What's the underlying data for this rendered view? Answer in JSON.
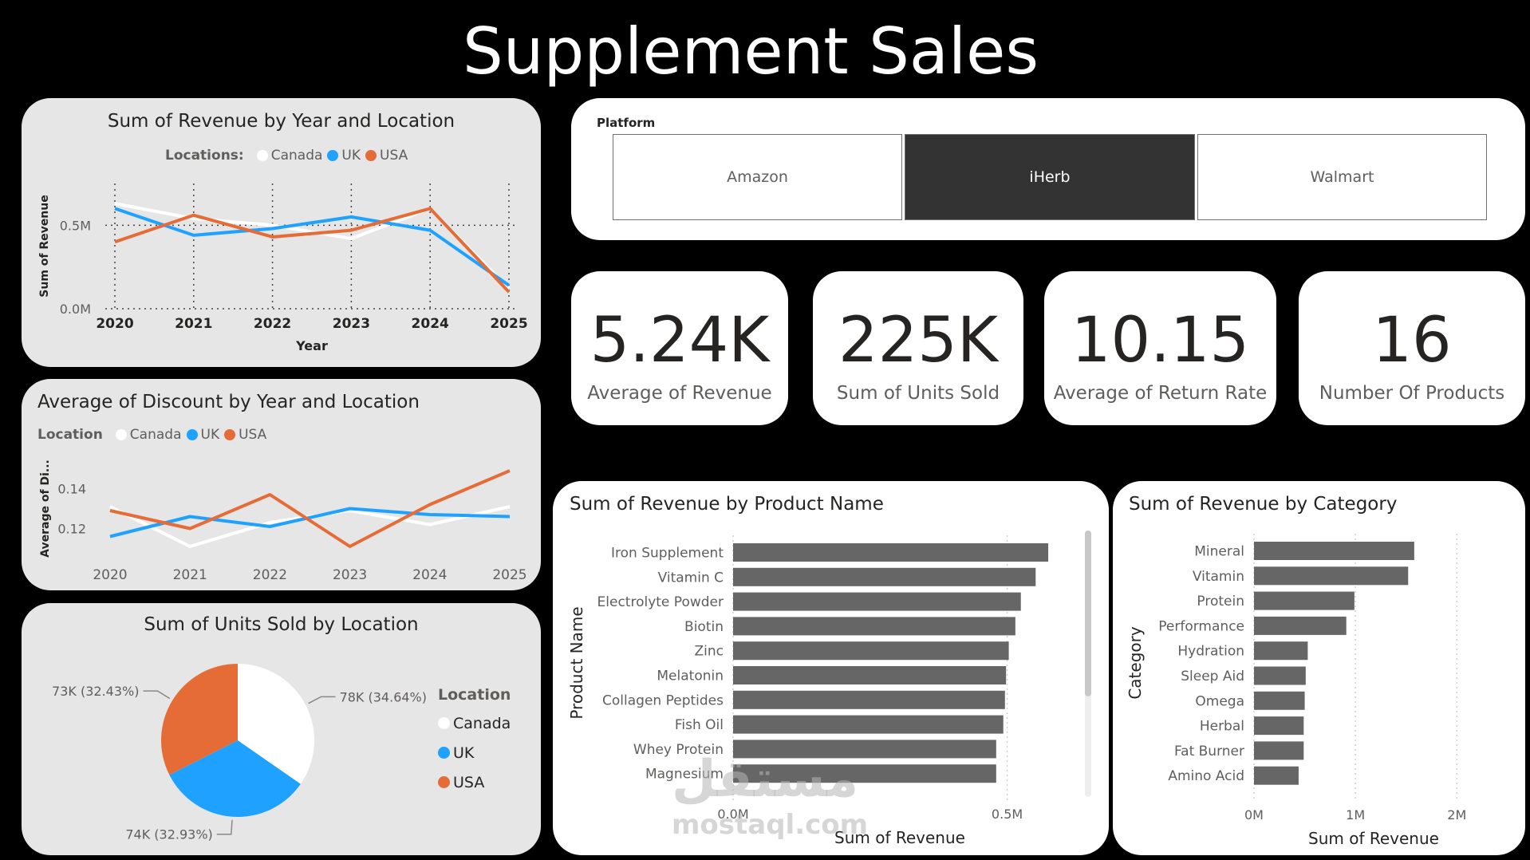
{
  "page_title": "Supplement Sales",
  "colors": {
    "canada": "#ffffff",
    "uk": "#1fa2ff",
    "usa": "#e66c37",
    "bar": "#666666",
    "selected": "#333333"
  },
  "slicer": {
    "title": "Platform",
    "options": [
      "Amazon",
      "iHerb",
      "Walmart"
    ],
    "selected": "iHerb"
  },
  "kpis": [
    {
      "value": "5.24K",
      "label": "Average of Revenue"
    },
    {
      "value": "225K",
      "label": "Sum of Units Sold"
    },
    {
      "value": "10.15",
      "label": "Average of Return Rate"
    },
    {
      "value": "16",
      "label": "Number Of Products"
    }
  ],
  "watermark": {
    "arabic": "مستقل",
    "latin": "mostaql.com"
  },
  "chart_data": [
    {
      "id": "revenue_by_year",
      "type": "line",
      "title": "Sum of Revenue by Year and Location",
      "legend_title": "Locations:",
      "xlabel": "Year",
      "ylabel": "Sum of Revenue",
      "x": [
        "2020",
        "2021",
        "2022",
        "2023",
        "2024",
        "2025"
      ],
      "ylim": [
        0,
        0.75
      ],
      "yticks": [
        {
          "v": 0,
          "label": "0.0M"
        },
        {
          "v": 0.5,
          "label": "0.5M"
        }
      ],
      "grid": true,
      "series": [
        {
          "name": "Canada",
          "color": "#ffffff",
          "values": [
            0.63,
            0.54,
            0.5,
            0.42,
            0.6,
            0.12
          ]
        },
        {
          "name": "UK",
          "color": "#1fa2ff",
          "values": [
            0.6,
            0.44,
            0.48,
            0.55,
            0.47,
            0.14
          ]
        },
        {
          "name": "USA",
          "color": "#e66c37",
          "values": [
            0.4,
            0.56,
            0.43,
            0.47,
            0.6,
            0.1
          ]
        }
      ]
    },
    {
      "id": "discount_by_year",
      "type": "line",
      "title": "Average of Discount by Year and Location",
      "legend_title": "Location",
      "xlabel": "",
      "ylabel": "Average of Di...",
      "x": [
        "2020",
        "2021",
        "2022",
        "2023",
        "2024",
        "2025"
      ],
      "ylim": [
        0.105,
        0.155
      ],
      "yticks": [
        {
          "v": 0.12,
          "label": "0.12"
        },
        {
          "v": 0.14,
          "label": "0.14"
        }
      ],
      "grid": false,
      "series": [
        {
          "name": "Canada",
          "color": "#ffffff",
          "values": [
            0.131,
            0.111,
            0.123,
            0.129,
            0.122,
            0.131
          ]
        },
        {
          "name": "UK",
          "color": "#1fa2ff",
          "values": [
            0.116,
            0.126,
            0.121,
            0.13,
            0.127,
            0.126
          ]
        },
        {
          "name": "USA",
          "color": "#e66c37",
          "values": [
            0.129,
            0.12,
            0.137,
            0.111,
            0.132,
            0.149
          ]
        }
      ]
    },
    {
      "id": "units_by_location",
      "type": "pie",
      "title": "Sum of Units Sold by Location",
      "legend_title": "Location",
      "slices": [
        {
          "name": "Canada",
          "color": "#ffffff",
          "value": 78,
          "label": "78K (34.64%)"
        },
        {
          "name": "UK",
          "color": "#1fa2ff",
          "value": 74,
          "label": "74K (32.93%)"
        },
        {
          "name": "USA",
          "color": "#e66c37",
          "value": 73,
          "label": "73K (32.43%)"
        }
      ]
    },
    {
      "id": "revenue_by_product",
      "type": "bar",
      "orientation": "horizontal",
      "title": "Sum of Revenue by Product Name",
      "xlabel": "Sum of Revenue",
      "ylabel": "Product Name",
      "xlim": [
        0,
        0.62
      ],
      "xticks": [
        {
          "v": 0,
          "label": "0.0M"
        },
        {
          "v": 0.5,
          "label": "0.5M"
        }
      ],
      "categories": [
        "Iron Supplement",
        "Vitamin C",
        "Electrolyte Powder",
        "Biotin",
        "Zinc",
        "Melatonin",
        "Collagen Peptides",
        "Fish Oil",
        "Whey Protein",
        "Magnesium"
      ],
      "values": [
        0.575,
        0.552,
        0.525,
        0.515,
        0.503,
        0.498,
        0.496,
        0.493,
        0.48,
        0.48
      ]
    },
    {
      "id": "revenue_by_category",
      "type": "bar",
      "orientation": "horizontal",
      "title": "Sum of Revenue by Category",
      "xlabel": "Sum of Revenue",
      "ylabel": "Category",
      "xlim": [
        0,
        2.1
      ],
      "xticks": [
        {
          "v": 0,
          "label": "0M"
        },
        {
          "v": 1,
          "label": "1M"
        },
        {
          "v": 2,
          "label": "2M"
        }
      ],
      "categories": [
        "Mineral",
        "Vitamin",
        "Protein",
        "Performance",
        "Hydration",
        "Sleep Aid",
        "Omega",
        "Herbal",
        "Fat Burner",
        "Amino Acid"
      ],
      "values": [
        1.58,
        1.52,
        0.99,
        0.91,
        0.53,
        0.51,
        0.5,
        0.49,
        0.49,
        0.44
      ]
    }
  ]
}
